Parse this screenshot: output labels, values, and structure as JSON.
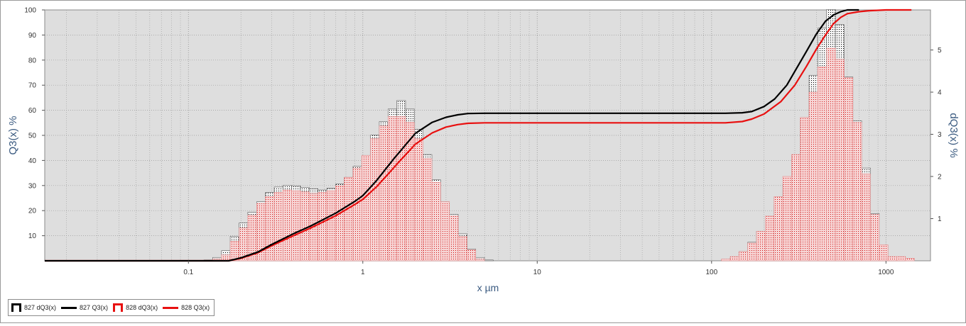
{
  "colors": {
    "plot_background": "#dedede",
    "grid": "#9a9a9a",
    "axis_text": "#3a5a80",
    "series_827": "#000000",
    "series_828": "#e81010"
  },
  "chart_data": {
    "type": "bar",
    "xlabel": "x µm",
    "ylabel": "Q3(x) %",
    "y2label": "dQ3(x) %",
    "xscale": "log",
    "xlim": [
      0.015,
      1800
    ],
    "ylim": [
      0,
      100
    ],
    "y2lim": [
      0,
      5.95
    ],
    "grid": true,
    "legend_position": "bottom-left",
    "x_ticks": [
      "0.1",
      "1",
      "10",
      "100",
      "1000"
    ],
    "y_ticks": [
      "10",
      "20",
      "30",
      "40",
      "50",
      "60",
      "70",
      "80",
      "90",
      "100"
    ],
    "y2_ticks": [
      "1",
      "2",
      "3",
      "4",
      "5"
    ],
    "legend": [
      "827 dQ3(x)",
      "827 Q3(x)",
      "828 dQ3(x)",
      "828 Q3(x)"
    ],
    "bar_x": [
      0.13,
      0.146,
      0.164,
      0.184,
      0.207,
      0.232,
      0.261,
      0.293,
      0.329,
      0.369,
      0.414,
      0.465,
      0.522,
      0.586,
      0.658,
      0.739,
      0.829,
      0.931,
      1.045,
      1.173,
      1.317,
      1.479,
      1.66,
      1.864,
      2.092,
      2.349,
      2.637,
      2.961,
      3.324,
      3.732,
      4.19,
      4.704,
      5.28,
      120.7,
      135.5,
      152.1,
      170.8,
      191.7,
      215.3,
      241.7,
      271.3,
      304.6,
      342,
      383.9,
      431,
      483.9,
      543.3,
      609.9,
      684.7,
      768.7,
      863,
      968.9,
      1087.7,
      1221.2,
      1371
    ],
    "series": [
      {
        "name": "827 dQ3(x)",
        "kind": "histogram",
        "axis": "y2",
        "values": [
          0.02,
          0.08,
          0.24,
          0.58,
          0.9,
          1.15,
          1.4,
          1.62,
          1.75,
          1.79,
          1.78,
          1.74,
          1.71,
          1.68,
          1.72,
          1.82,
          1.98,
          2.24,
          2.5,
          2.98,
          3.3,
          3.6,
          3.8,
          3.6,
          3.12,
          2.52,
          1.92,
          1.4,
          1.1,
          0.64,
          0.28,
          0.08,
          0.02,
          0.02,
          0.06,
          0.22,
          0.44,
          0.7,
          0.98,
          1.32,
          1.82,
          2.5,
          3.32,
          4.4,
          5.52,
          5.96,
          5.6,
          4.36,
          3.32,
          2.2,
          1.12,
          0.36,
          0.08,
          0.02,
          0.0
        ]
      },
      {
        "name": "828 dQ3(x)",
        "kind": "histogram",
        "axis": "y2",
        "values": [
          0.0,
          0.04,
          0.14,
          0.46,
          0.78,
          1.08,
          1.36,
          1.52,
          1.62,
          1.68,
          1.66,
          1.64,
          1.6,
          1.62,
          1.66,
          1.78,
          1.98,
          2.2,
          2.5,
          2.9,
          3.2,
          3.42,
          3.42,
          3.28,
          2.9,
          2.42,
          1.86,
          1.4,
          1.06,
          0.58,
          0.26,
          0.04,
          0.0,
          0.04,
          0.1,
          0.22,
          0.42,
          0.7,
          1.06,
          1.52,
          2.0,
          2.52,
          3.4,
          4.0,
          4.6,
          5.04,
          4.78,
          4.34,
          3.28,
          2.06,
          1.1,
          0.38,
          0.1,
          0.1,
          0.06
        ]
      },
      {
        "name": "827 Q3(x)",
        "kind": "cumulative",
        "axis": "y",
        "x": [
          0.015,
          0.17,
          0.2,
          0.25,
          0.3,
          0.4,
          0.5,
          0.7,
          0.9,
          1.0,
          1.2,
          1.5,
          2.0,
          2.5,
          3.0,
          3.5,
          4.0,
          5.0,
          10,
          50,
          120,
          150,
          170,
          200,
          230,
          270,
          300,
          350,
          400,
          450,
          500,
          550,
          600,
          700
        ],
        "values": [
          0,
          0,
          1.2,
          3.5,
          6.5,
          10.8,
          13.8,
          19.0,
          23.7,
          26.0,
          32.0,
          40.5,
          50.8,
          55.2,
          57.2,
          58.2,
          58.7,
          58.8,
          58.8,
          58.8,
          58.8,
          59.0,
          59.5,
          61.5,
          64.5,
          70.0,
          75.5,
          83.5,
          90.5,
          95.5,
          98.0,
          99.3,
          100,
          100
        ]
      },
      {
        "name": "828 Q3(x)",
        "kind": "cumulative",
        "axis": "y",
        "x": [
          0.015,
          0.17,
          0.2,
          0.25,
          0.3,
          0.4,
          0.5,
          0.7,
          0.9,
          1.0,
          1.2,
          1.5,
          2.0,
          2.5,
          3.0,
          3.5,
          4.0,
          5.0,
          10,
          50,
          120,
          150,
          170,
          200,
          250,
          300,
          350,
          400,
          450,
          500,
          550,
          600,
          700,
          800,
          1000,
          1400
        ],
        "values": [
          0,
          0,
          1.0,
          3.2,
          6.0,
          10.0,
          13.0,
          18.0,
          22.5,
          24.5,
          29.5,
          37.0,
          46.5,
          51.0,
          53.3,
          54.3,
          54.8,
          55.0,
          55.0,
          55.0,
          55.0,
          55.5,
          56.5,
          58.5,
          63.5,
          70.0,
          77.5,
          84.5,
          90.0,
          94.5,
          97.0,
          98.5,
          99.3,
          99.7,
          100,
          100
        ]
      }
    ]
  }
}
